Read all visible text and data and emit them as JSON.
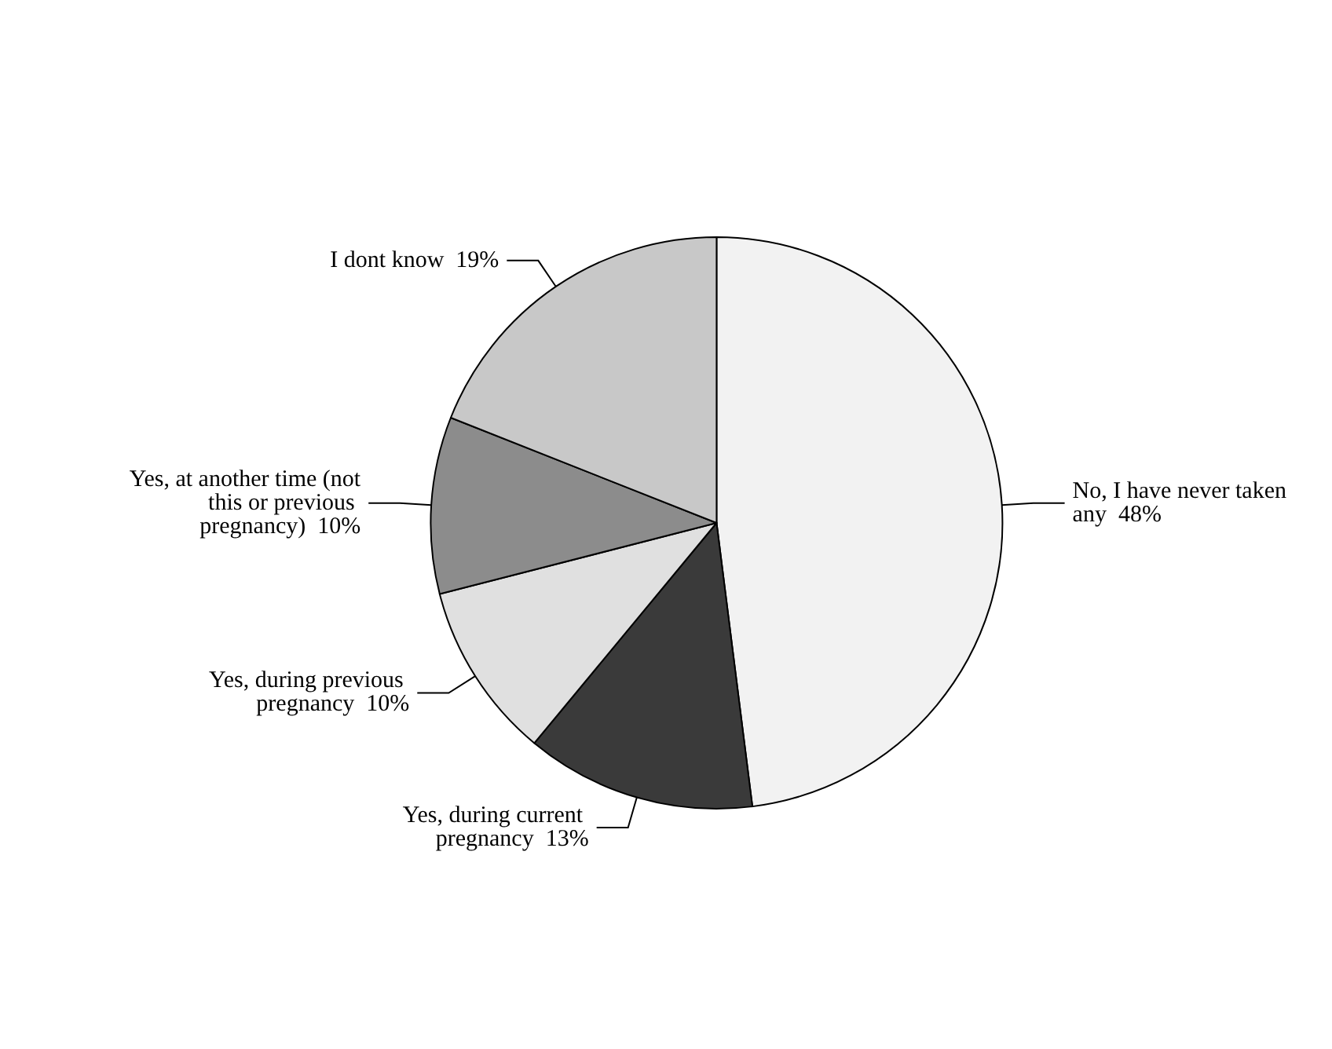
{
  "chart_data": {
    "type": "pie",
    "categories": [
      "No, I have never taken any",
      "Yes, during current pregnancy",
      "Yes, during previous pregnancy",
      "Yes, at another time (not this or previous pregnancy)",
      "I dont know"
    ],
    "values": [
      48,
      13,
      10,
      10,
      19
    ],
    "value_labels": [
      "48%",
      "13%",
      "10%",
      "10%",
      "19%"
    ],
    "colors": [
      "#f2f2f2",
      "#3a3a3a",
      "#e0e0e0",
      "#8c8c8c",
      "#c8c8c8"
    ],
    "legend": false
  }
}
